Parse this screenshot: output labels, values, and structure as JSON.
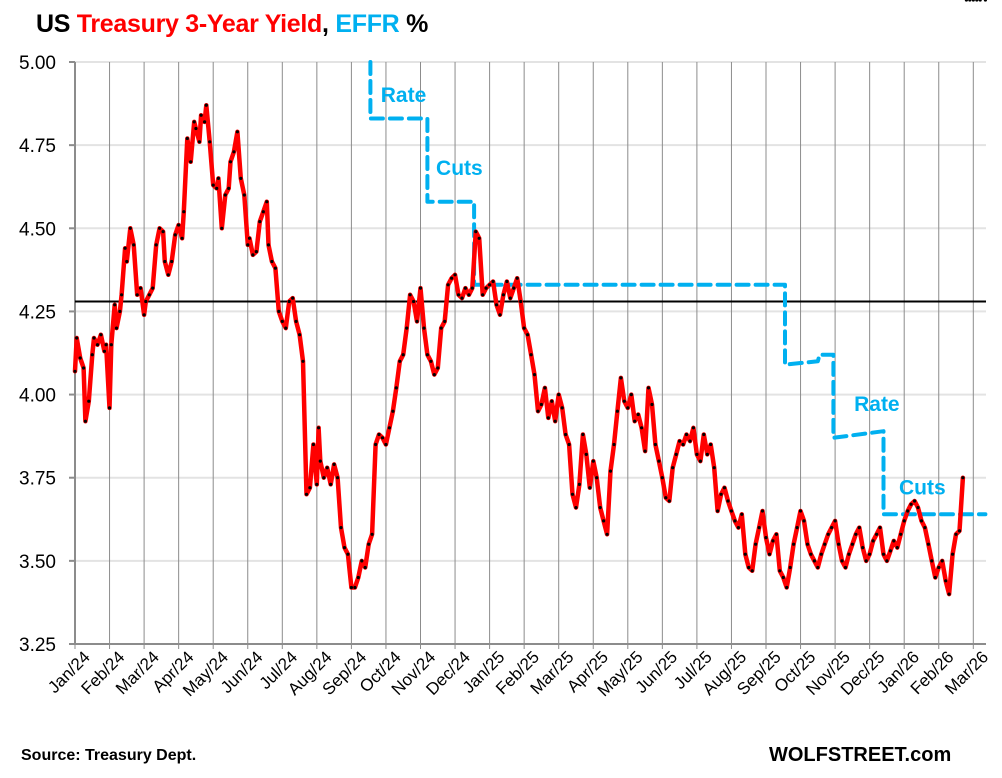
{
  "title": {
    "part1": "US ",
    "part2": "Treasury 3-Year Yield",
    "part3": ", ",
    "part4": "EFFR",
    "part5": " %"
  },
  "footer": {
    "source": "Source: Treasury Dept.",
    "brand": "WOLFSTREET.com"
  },
  "chart_data": {
    "type": "line",
    "title": "US Treasury 3-Year Yield, EFFR %",
    "xlabel": "",
    "ylabel": "",
    "ylim": [
      3.25,
      5.0
    ],
    "yticks": [
      "5.00",
      "4.75",
      "4.50",
      "4.25",
      "4.00",
      "3.75",
      "3.50",
      "3.25"
    ],
    "ytick_values": [
      5.0,
      4.75,
      4.5,
      4.25,
      4.0,
      3.75,
      3.5,
      3.25
    ],
    "xlim_months": [
      0,
      26.4
    ],
    "categories": [
      "Jan/24",
      "Feb/24",
      "Mar/24",
      "Apr/24",
      "May/24",
      "Jun/24",
      "Jul/24",
      "Aug/24",
      "Sep/24",
      "Oct/24",
      "Nov/24",
      "Dec/24",
      "Jan/25",
      "Feb/25",
      "Mar/25",
      "Apr/25",
      "May/25",
      "Jun/25",
      "Jul/25",
      "Aug/25",
      "Sep/25",
      "Oct/25",
      "Nov/25",
      "Dec/25",
      "Jan/26",
      "Feb/26",
      "Mar/26"
    ],
    "grid": "vertical-monthly-and-horizontal",
    "legend": "none (colored title)",
    "reference_line": {
      "value": 4.28,
      "color": "#000000"
    },
    "annotations": [
      {
        "text": "Rate",
        "x_month": 8.85,
        "y": 4.88
      },
      {
        "text": "Cuts",
        "x_month": 10.45,
        "y": 4.66
      },
      {
        "text": "Rate",
        "x_month": 22.55,
        "y": 3.95
      },
      {
        "text": "Cuts",
        "x_month": 23.85,
        "y": 3.7
      }
    ],
    "series": [
      {
        "name": "US Treasury 3-Year Yield",
        "color": "#ff0000",
        "marker_color": "#000000",
        "x_month": [
          0.0,
          0.05,
          0.15,
          0.25,
          0.3,
          0.4,
          0.5,
          0.55,
          0.65,
          0.75,
          0.85,
          0.9,
          1.0,
          1.05,
          1.15,
          1.2,
          1.3,
          1.35,
          1.45,
          1.5,
          1.6,
          1.7,
          1.8,
          1.9,
          2.0,
          2.05,
          2.15,
          2.25,
          2.35,
          2.45,
          2.55,
          2.6,
          2.7,
          2.8,
          2.9,
          3.0,
          3.1,
          3.15,
          3.25,
          3.35,
          3.45,
          3.5,
          3.6,
          3.65,
          3.75,
          3.8,
          3.9,
          4.0,
          4.1,
          4.15,
          4.25,
          4.35,
          4.45,
          4.5,
          4.6,
          4.7,
          4.8,
          4.9,
          5.0,
          5.05,
          5.15,
          5.25,
          5.35,
          5.45,
          5.55,
          5.6,
          5.7,
          5.8,
          5.9,
          6.0,
          6.1,
          6.2,
          6.3,
          6.4,
          6.5,
          6.6,
          6.7,
          6.8,
          6.9,
          7.0,
          7.05,
          7.1,
          7.2,
          7.3,
          7.4,
          7.5,
          7.6,
          7.7,
          7.8,
          7.9,
          8.0,
          8.1,
          8.2,
          8.3,
          8.4,
          8.5,
          8.6,
          8.7,
          8.8,
          8.9,
          9.0,
          9.1,
          9.2,
          9.3,
          9.4,
          9.5,
          9.6,
          9.7,
          9.8,
          9.9,
          10.0,
          10.1,
          10.2,
          10.3,
          10.4,
          10.5,
          10.6,
          10.7,
          10.8,
          10.9,
          11.0,
          11.1,
          11.2,
          11.3,
          11.4,
          11.5,
          11.6,
          11.7,
          11.8,
          11.9,
          12.0,
          12.1,
          12.2,
          12.3,
          12.4,
          12.5,
          12.6,
          12.7,
          12.8,
          12.9,
          13.0,
          13.1,
          13.2,
          13.3,
          13.4,
          13.5,
          13.6,
          13.7,
          13.8,
          13.9,
          14.0,
          14.1,
          14.2,
          14.3,
          14.4,
          14.5,
          14.6,
          14.7,
          14.8,
          14.9,
          15.0,
          15.1,
          15.2,
          15.3,
          15.4,
          15.5,
          15.6,
          15.7,
          15.8,
          15.9,
          16.0,
          16.1,
          16.2,
          16.3,
          16.4,
          16.5,
          16.6,
          16.7,
          16.8,
          16.9,
          17.0,
          17.1,
          17.2,
          17.3,
          17.4,
          17.5,
          17.6,
          17.7,
          17.8,
          17.9,
          18.0,
          18.1,
          18.2,
          18.3,
          18.4,
          18.5,
          18.6,
          18.7,
          18.8,
          18.9,
          19.0,
          19.1,
          19.2,
          19.3,
          19.4,
          19.5,
          19.6,
          19.7,
          19.8,
          19.9,
          20.0,
          20.1,
          20.2,
          20.3,
          20.4,
          20.5,
          20.6,
          20.7,
          20.8,
          20.9,
          21.0,
          21.1,
          21.2,
          21.3,
          21.4,
          21.5,
          21.6,
          21.7,
          21.8,
          21.9,
          22.0,
          22.1,
          22.2,
          22.3,
          22.4,
          22.5,
          22.6,
          22.7,
          22.8,
          22.9,
          23.0,
          23.1,
          23.2,
          23.3,
          23.4,
          23.5,
          23.6,
          23.7,
          23.8,
          23.9,
          24.0,
          24.1,
          24.2,
          24.3,
          24.4,
          24.5,
          24.6,
          24.7,
          24.8,
          24.9,
          25.0,
          25.1,
          25.2,
          25.3,
          25.4,
          25.5,
          25.6,
          25.7,
          25.8,
          25.9,
          26.0,
          26.1,
          26.2,
          26.35
        ],
        "values": [
          4.07,
          4.17,
          4.11,
          4.08,
          3.92,
          3.98,
          4.12,
          4.17,
          4.15,
          4.18,
          4.13,
          4.15,
          3.96,
          4.15,
          4.27,
          4.2,
          4.25,
          4.3,
          4.44,
          4.4,
          4.5,
          4.45,
          4.3,
          4.32,
          4.24,
          4.28,
          4.3,
          4.32,
          4.45,
          4.5,
          4.49,
          4.4,
          4.36,
          4.4,
          4.48,
          4.51,
          4.47,
          4.55,
          4.77,
          4.7,
          4.82,
          4.8,
          4.76,
          4.84,
          4.82,
          4.87,
          4.76,
          4.63,
          4.62,
          4.65,
          4.5,
          4.6,
          4.62,
          4.7,
          4.73,
          4.79,
          4.65,
          4.6,
          4.45,
          4.47,
          4.42,
          4.43,
          4.52,
          4.55,
          4.58,
          4.45,
          4.4,
          4.38,
          4.25,
          4.22,
          4.2,
          4.28,
          4.29,
          4.22,
          4.18,
          4.1,
          3.7,
          3.72,
          3.85,
          3.73,
          3.9,
          3.8,
          3.75,
          3.78,
          3.73,
          3.79,
          3.75,
          3.6,
          3.54,
          3.52,
          3.42,
          3.42,
          3.45,
          3.5,
          3.48,
          3.55,
          3.58,
          3.85,
          3.88,
          3.87,
          3.85,
          3.9,
          3.95,
          4.02,
          4.1,
          4.12,
          4.2,
          4.3,
          4.28,
          4.22,
          4.32,
          4.2,
          4.12,
          4.1,
          4.06,
          4.08,
          4.2,
          4.22,
          4.33,
          4.35,
          4.36,
          4.3,
          4.29,
          4.32,
          4.3,
          4.32,
          4.49,
          4.47,
          4.3,
          4.32,
          4.33,
          4.34,
          4.27,
          4.24,
          4.3,
          4.34,
          4.29,
          4.32,
          4.35,
          4.28,
          4.2,
          4.18,
          4.12,
          4.06,
          3.95,
          3.97,
          4.02,
          3.93,
          3.98,
          3.92,
          4.0,
          3.96,
          3.88,
          3.85,
          3.7,
          3.66,
          3.73,
          3.88,
          3.82,
          3.72,
          3.8,
          3.75,
          3.66,
          3.62,
          3.58,
          3.77,
          3.85,
          3.95,
          4.05,
          3.98,
          3.96,
          4.0,
          3.92,
          3.94,
          3.9,
          3.83,
          4.02,
          3.97,
          3.85,
          3.8,
          3.75,
          3.69,
          3.68,
          3.78,
          3.82,
          3.86,
          3.85,
          3.88,
          3.86,
          3.9,
          3.82,
          3.8,
          3.88,
          3.82,
          3.85,
          3.78,
          3.65,
          3.7,
          3.72,
          3.68,
          3.65,
          3.62,
          3.6,
          3.64,
          3.52,
          3.48,
          3.47,
          3.55,
          3.6,
          3.65,
          3.57,
          3.52,
          3.56,
          3.58,
          3.47,
          3.45,
          3.42,
          3.48,
          3.55,
          3.6,
          3.65,
          3.62,
          3.55,
          3.52,
          3.5,
          3.48,
          3.52,
          3.55,
          3.58,
          3.6,
          3.62,
          3.55,
          3.5,
          3.48,
          3.52,
          3.55,
          3.58,
          3.6,
          3.54,
          3.5,
          3.52,
          3.56,
          3.58,
          3.6,
          3.52,
          3.5,
          3.53,
          3.56,
          3.54,
          3.58,
          3.62,
          3.65,
          3.67,
          3.68,
          3.66,
          3.62,
          3.6,
          3.55,
          3.5,
          3.45,
          3.48,
          3.5,
          3.44,
          3.4,
          3.52,
          3.58,
          3.59,
          3.75
        ]
      },
      {
        "name": "EFFR",
        "color": "#00b0f0",
        "style": "dashed",
        "x_month": [
          8.55,
          8.55,
          10.2,
          10.2,
          11.55,
          11.55,
          20.55,
          20.55,
          21.5,
          21.55,
          21.95,
          21.95,
          23.4,
          23.4,
          26.35
        ],
        "values": [
          5.33,
          4.83,
          4.83,
          4.58,
          4.58,
          4.33,
          4.33,
          4.09,
          4.1,
          4.12,
          4.12,
          3.87,
          3.89,
          3.64,
          3.64
        ]
      }
    ]
  }
}
